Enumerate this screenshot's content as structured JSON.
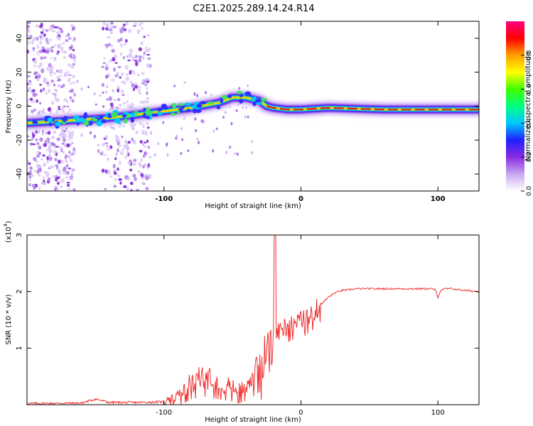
{
  "title": "C2E1.2025.289.14.24.R14",
  "chart_data": [
    {
      "type": "heatmap",
      "name": "spectrogram",
      "xlabel": "Height of straight line (km)",
      "ylabel": "Frequency (Hz)",
      "xlim": [
        -200,
        130
      ],
      "ylim": [
        -50,
        50
      ],
      "xticks": [
        -100,
        0,
        100
      ],
      "yticks": [
        -40,
        -20,
        0,
        20,
        40
      ],
      "colorbar": {
        "label": "Normalized spectral amplitude",
        "range": [
          0,
          1
        ],
        "ticks": [
          "0.0",
          "0.2",
          "0.4",
          "0.6",
          "0.8"
        ],
        "tick_values": [
          0.0,
          0.2,
          0.4,
          0.6,
          0.8
        ],
        "colors": [
          "#ffffff",
          "#c8a8f0",
          "#8a2be2",
          "#2020ff",
          "#00c8ff",
          "#00ff80",
          "#40ff00",
          "#ffff00",
          "#ffa000",
          "#ff0000",
          "#ff0080"
        ]
      },
      "ridge": [
        [
          -200,
          -10
        ],
        [
          -180,
          -9
        ],
        [
          -160,
          -8
        ],
        [
          -140,
          -7
        ],
        [
          -120,
          -5
        ],
        [
          -100,
          -3
        ],
        [
          -80,
          -1
        ],
        [
          -60,
          2
        ],
        [
          -50,
          5
        ],
        [
          -40,
          5
        ],
        [
          -30,
          3
        ],
        [
          -25,
          0
        ],
        [
          -20,
          -1
        ],
        [
          -10,
          -2
        ],
        [
          0,
          -2
        ],
        [
          20,
          -1
        ],
        [
          60,
          -2
        ],
        [
          100,
          -2
        ],
        [
          130,
          -2
        ]
      ],
      "noise_band_1_x": [
        -200,
        -165
      ],
      "noise_band_2_x": [
        -145,
        -110
      ]
    },
    {
      "type": "line",
      "name": "snr",
      "xlabel": "Height of straight line (km)",
      "ylabel": "SNR (10 * v/v)",
      "scale_label": "(x10^4)",
      "scale_base": "(x10",
      "scale_exp": "4",
      "scale_close": ")",
      "xlim": [
        -200,
        130
      ],
      "ylim": [
        0,
        3
      ],
      "xticks": [
        -100,
        0,
        100
      ],
      "yticks": [
        1,
        2,
        3
      ],
      "color": "#f03030",
      "series": [
        {
          "name": "SNR",
          "x": [
            -200,
            -160,
            -150,
            -140,
            -120,
            -100,
            -95,
            -90,
            -85,
            -80,
            -75,
            -70,
            -65,
            -60,
            -55,
            -50,
            -45,
            -40,
            -35,
            -30,
            -27,
            -24,
            -22,
            -20,
            -18,
            -16,
            -14,
            -12,
            -10,
            -8,
            -6,
            -4,
            -2,
            0,
            2,
            5,
            8,
            10,
            15,
            20,
            25,
            30,
            35,
            40,
            50,
            60,
            70,
            80,
            90,
            96,
            98,
            100,
            102,
            105,
            110,
            120,
            130
          ],
          "y": [
            0.02,
            0.03,
            0.1,
            0.04,
            0.04,
            0.05,
            0.08,
            0.15,
            0.25,
            0.4,
            0.45,
            0.5,
            0.45,
            0.4,
            0.35,
            0.3,
            0.25,
            0.35,
            0.5,
            0.7,
            0.9,
            1.0,
            1.1,
            1.2,
            1.25,
            1.3,
            1.35,
            1.38,
            1.4,
            1.42,
            1.44,
            1.45,
            1.46,
            1.48,
            1.5,
            1.55,
            1.6,
            1.65,
            1.78,
            1.9,
            1.98,
            2.02,
            2.03,
            2.05,
            2.05,
            2.05,
            2.05,
            2.05,
            2.05,
            2.05,
            2.03,
            1.9,
            2.02,
            2.05,
            2.05,
            2.02,
            2.0
          ],
          "spike": {
            "x": -19,
            "y": 3.0
          }
        }
      ]
    }
  ]
}
